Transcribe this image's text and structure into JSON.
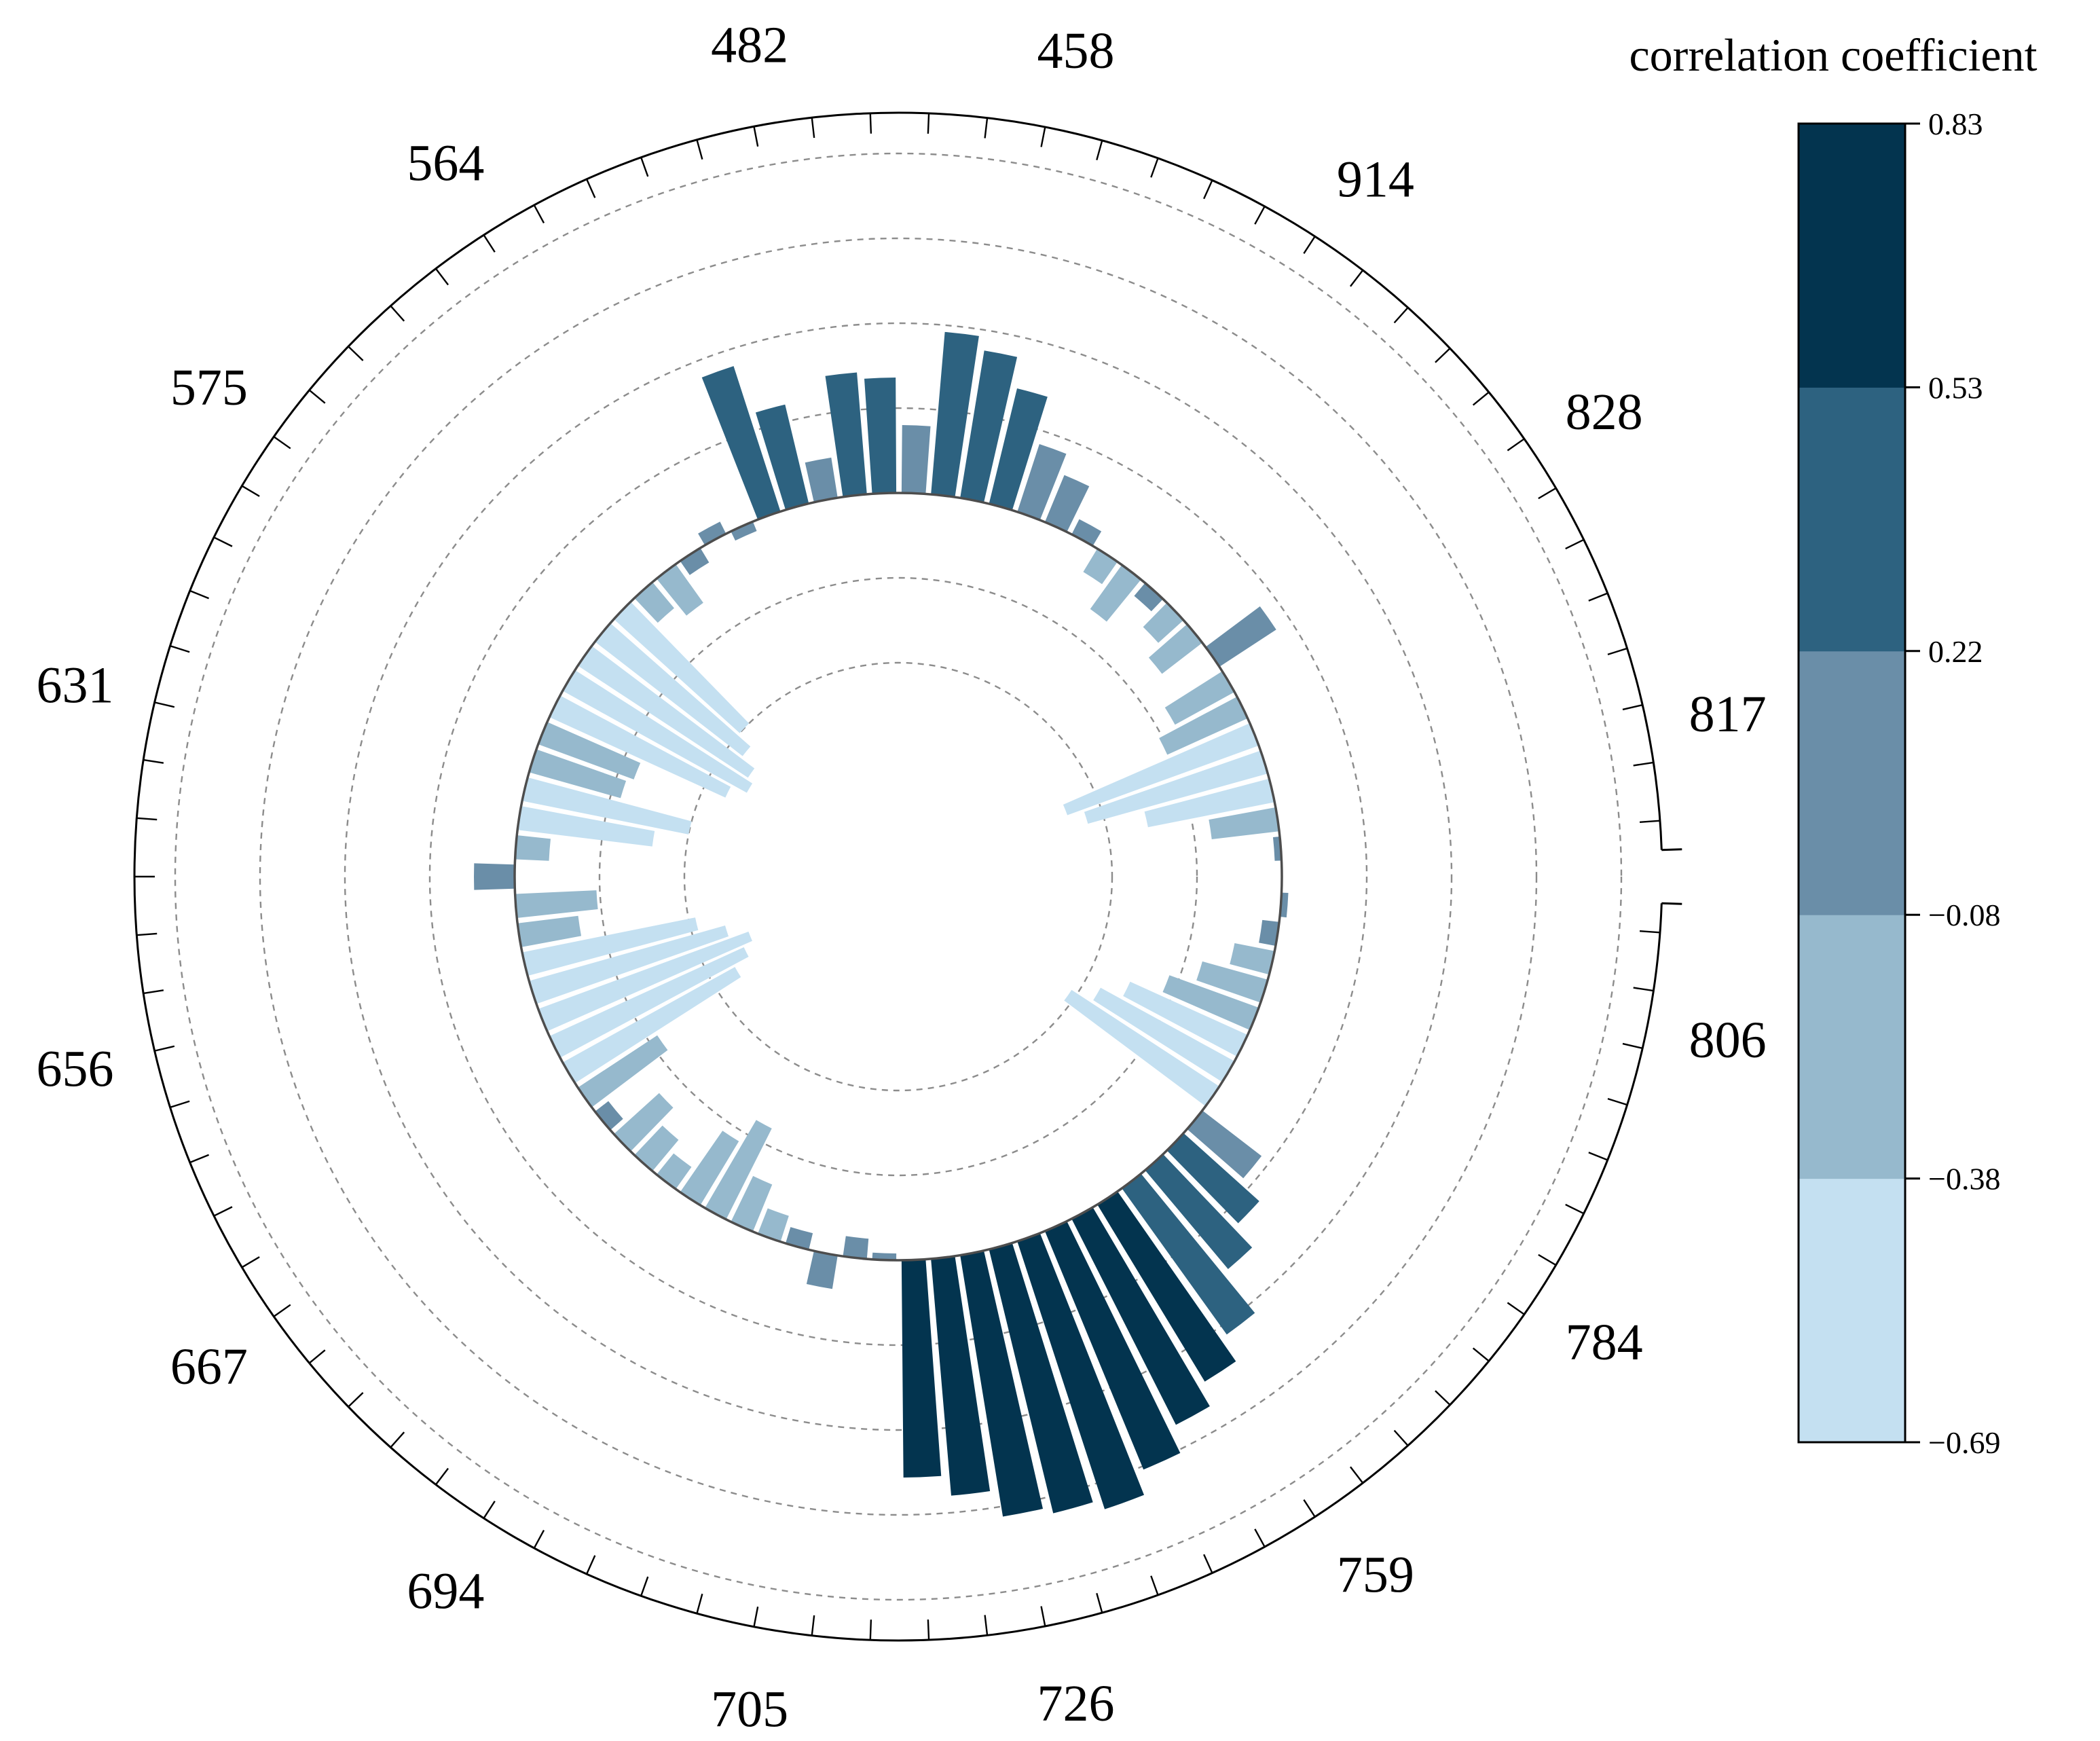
{
  "chart_data": {
    "type": "radial-bar",
    "title": "",
    "colorbar": {
      "title": "correlation coefficient",
      "ticks": [
        "0.83",
        "0.53",
        "0.22",
        "−0.08",
        "−0.38",
        "−0.69"
      ],
      "levels": [
        0.83,
        0.53,
        0.22,
        -0.08,
        -0.38,
        -0.69
      ],
      "colors": [
        "#c4e0f1",
        "#96b9cd",
        "#6a8ea8",
        "#2d6280",
        "#03344f"
      ]
    },
    "angle_labels": [
      "631",
      "575",
      "564",
      "482",
      "458",
      "914",
      "828",
      "817",
      "806",
      "784",
      "759",
      "726",
      "705",
      "694",
      "667",
      "656"
    ],
    "radial_axis": {
      "center": 0,
      "range": [
        -0.69,
        0.83
      ],
      "gridlines": [
        -0.5,
        -0.25,
        0.25,
        0.5,
        0.75,
        1.0
      ]
    },
    "series": [
      {
        "name": "correlation coefficient",
        "values": [
          0.02,
          -0.05,
          -0.12,
          -0.2,
          -0.28,
          -0.38,
          -0.45,
          -0.52,
          0.22,
          0.3,
          0.38,
          0.53,
          0.61,
          0.68,
          0.76,
          0.83,
          0.8,
          0.78,
          0.7,
          0.64,
          -0.02,
          -0.06,
          0.1,
          -0.05,
          -0.08,
          -0.15,
          -0.3,
          -0.22,
          -0.08,
          -0.12,
          -0.18,
          -0.05,
          -0.28,
          -0.58,
          -0.63,
          -0.66,
          -0.6,
          -0.52,
          -0.18,
          -0.24,
          0.12,
          -0.1,
          -0.4,
          -0.5,
          -0.28,
          -0.3,
          -0.57,
          -0.62,
          -0.6,
          -0.55,
          -0.5,
          -0.1,
          -0.14,
          -0.05,
          0.04,
          -0.03,
          0.45,
          0.3,
          0.12,
          0.36,
          0.34,
          0.2,
          0.48,
          0.44,
          0.35,
          0.21,
          0.15,
          0.05,
          -0.08,
          -0.16,
          -0.05,
          -0.1,
          -0.15,
          0.2,
          -0.2,
          -0.26,
          -0.6,
          -0.55,
          -0.38,
          -0.2,
          -0.02
        ]
      }
    ]
  }
}
